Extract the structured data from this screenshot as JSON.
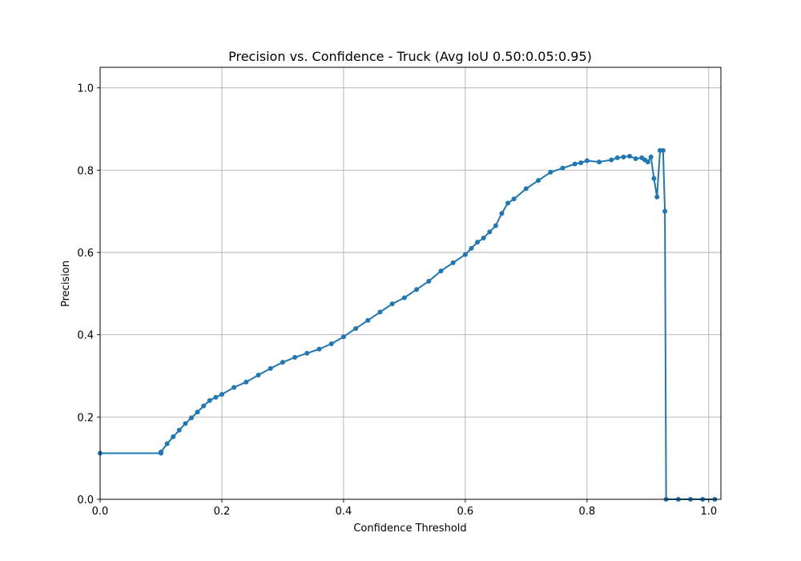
{
  "chart_data": {
    "type": "line",
    "title": "Precision vs. Confidence - Truck (Avg IoU 0.50:0.05:0.95)",
    "xlabel": "Confidence Threshold",
    "ylabel": "Precision",
    "xlim": [
      0.0,
      1.02
    ],
    "ylim": [
      0.0,
      1.05
    ],
    "xticks": [
      0.0,
      0.2,
      0.4,
      0.6,
      0.8,
      1.0
    ],
    "xtick_labels": [
      "0.0",
      "0.2",
      "0.4",
      "0.6",
      "0.8",
      "1.0"
    ],
    "yticks": [
      0.0,
      0.2,
      0.4,
      0.6,
      0.8,
      1.0
    ],
    "ytick_labels": [
      "0.0",
      "0.2",
      "0.4",
      "0.6",
      "0.8",
      "1.0"
    ],
    "grid": true,
    "color": "#1f77b4",
    "marker": "circle",
    "series": [
      {
        "x": [
          0.0,
          0.1,
          0.1,
          0.11,
          0.12,
          0.13,
          0.14,
          0.15,
          0.16,
          0.17,
          0.18,
          0.19,
          0.2,
          0.22,
          0.24,
          0.26,
          0.28,
          0.3,
          0.32,
          0.34,
          0.36,
          0.38,
          0.4,
          0.42,
          0.44,
          0.46,
          0.48,
          0.5,
          0.52,
          0.54,
          0.56,
          0.58,
          0.6,
          0.61,
          0.62,
          0.63,
          0.64,
          0.65,
          0.66,
          0.67,
          0.68,
          0.7,
          0.72,
          0.74,
          0.76,
          0.78,
          0.79,
          0.8,
          0.82,
          0.84,
          0.85,
          0.86,
          0.87,
          0.88,
          0.89,
          0.895,
          0.9,
          0.905,
          0.91,
          0.915,
          0.92,
          0.925,
          0.928,
          0.93,
          0.95,
          0.97,
          0.99,
          1.01
        ],
        "y": [
          0.112,
          0.112,
          0.115,
          0.135,
          0.152,
          0.168,
          0.184,
          0.198,
          0.212,
          0.227,
          0.24,
          0.248,
          0.255,
          0.272,
          0.285,
          0.302,
          0.318,
          0.333,
          0.345,
          0.355,
          0.365,
          0.378,
          0.395,
          0.415,
          0.435,
          0.455,
          0.475,
          0.49,
          0.51,
          0.53,
          0.555,
          0.575,
          0.595,
          0.61,
          0.625,
          0.635,
          0.65,
          0.665,
          0.695,
          0.72,
          0.73,
          0.755,
          0.775,
          0.795,
          0.805,
          0.815,
          0.818,
          0.823,
          0.82,
          0.825,
          0.83,
          0.832,
          0.834,
          0.828,
          0.83,
          0.825,
          0.82,
          0.832,
          0.78,
          0.735,
          0.848,
          0.848,
          0.7,
          0.0,
          0.0,
          0.0,
          0.0,
          0.0
        ]
      }
    ]
  }
}
